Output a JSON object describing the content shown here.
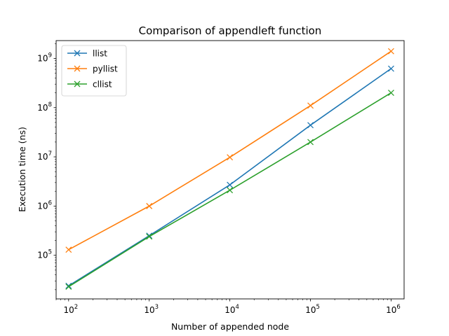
{
  "chart_data": {
    "type": "line",
    "title": "Comparison of appendleft function",
    "xlabel": "Number of appended node",
    "ylabel": "Execution time (ns)",
    "xscale": "log",
    "yscale": "log",
    "xlim": [
      70,
      1450000
    ],
    "ylim": [
      13000,
      2300000000
    ],
    "x": [
      100,
      1000,
      10000,
      100000,
      1000000
    ],
    "x_ticks": [
      {
        "value": 100,
        "base": "10",
        "exp": "2"
      },
      {
        "value": 1000,
        "base": "10",
        "exp": "3"
      },
      {
        "value": 10000,
        "base": "10",
        "exp": "4"
      },
      {
        "value": 100000,
        "base": "10",
        "exp": "5"
      },
      {
        "value": 1000000,
        "base": "10",
        "exp": "6"
      }
    ],
    "y_ticks": [
      {
        "value": 100000,
        "base": "10",
        "exp": "5"
      },
      {
        "value": 1000000,
        "base": "10",
        "exp": "6"
      },
      {
        "value": 10000000,
        "base": "10",
        "exp": "7"
      },
      {
        "value": 100000000,
        "base": "10",
        "exp": "8"
      },
      {
        "value": 1000000000,
        "base": "10",
        "exp": "9"
      }
    ],
    "series": [
      {
        "name": "llist",
        "color": "#1f77b4",
        "values": [
          24000,
          250000,
          2700000,
          44000000,
          620000000
        ]
      },
      {
        "name": "pyllist",
        "color": "#ff7f0e",
        "values": [
          130000,
          1000000,
          9800000,
          110000000,
          1400000000
        ]
      },
      {
        "name": "cllist",
        "color": "#2ca02c",
        "values": [
          23000,
          240000,
          2100000,
          20000000,
          200000000
        ]
      }
    ],
    "marker": "x",
    "grid": false,
    "legend": "upper left"
  }
}
